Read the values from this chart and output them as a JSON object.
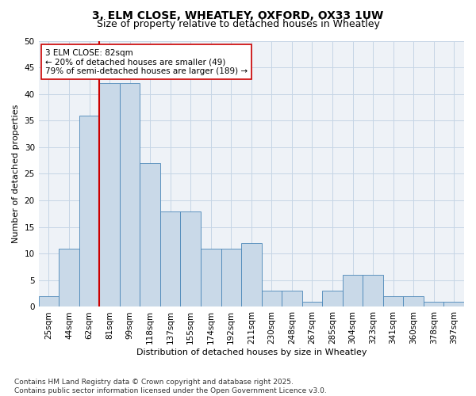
{
  "title_line1": "3, ELM CLOSE, WHEATLEY, OXFORD, OX33 1UW",
  "title_line2": "Size of property relative to detached houses in Wheatley",
  "xlabel": "Distribution of detached houses by size in Wheatley",
  "ylabel": "Number of detached properties",
  "bar_labels": [
    "25sqm",
    "44sqm",
    "62sqm",
    "81sqm",
    "99sqm",
    "118sqm",
    "137sqm",
    "155sqm",
    "174sqm",
    "192sqm",
    "211sqm",
    "230sqm",
    "248sqm",
    "267sqm",
    "285sqm",
    "304sqm",
    "323sqm",
    "341sqm",
    "360sqm",
    "378sqm",
    "397sqm"
  ],
  "bar_values": [
    2,
    11,
    36,
    42,
    42,
    27,
    18,
    18,
    11,
    11,
    12,
    3,
    3,
    1,
    3,
    6,
    6,
    2,
    2,
    1,
    1
  ],
  "bar_color": "#c9d9e8",
  "bar_edge_color": "#4a86b8",
  "grid_color": "#c5d5e5",
  "background_color": "#eef2f7",
  "vline_idx": 3,
  "vline_color": "#cc0000",
  "annotation_text": "3 ELM CLOSE: 82sqm\n← 20% of detached houses are smaller (49)\n79% of semi-detached houses are larger (189) →",
  "annotation_box_facecolor": "#ffffff",
  "annotation_box_edgecolor": "#cc0000",
  "ylim": [
    0,
    50
  ],
  "yticks": [
    0,
    5,
    10,
    15,
    20,
    25,
    30,
    35,
    40,
    45,
    50
  ],
  "footer_text": "Contains HM Land Registry data © Crown copyright and database right 2025.\nContains public sector information licensed under the Open Government Licence v3.0.",
  "title_fontsize": 10,
  "subtitle_fontsize": 9,
  "axis_label_fontsize": 8,
  "tick_fontsize": 7.5,
  "annotation_fontsize": 7.5,
  "footer_fontsize": 6.5
}
